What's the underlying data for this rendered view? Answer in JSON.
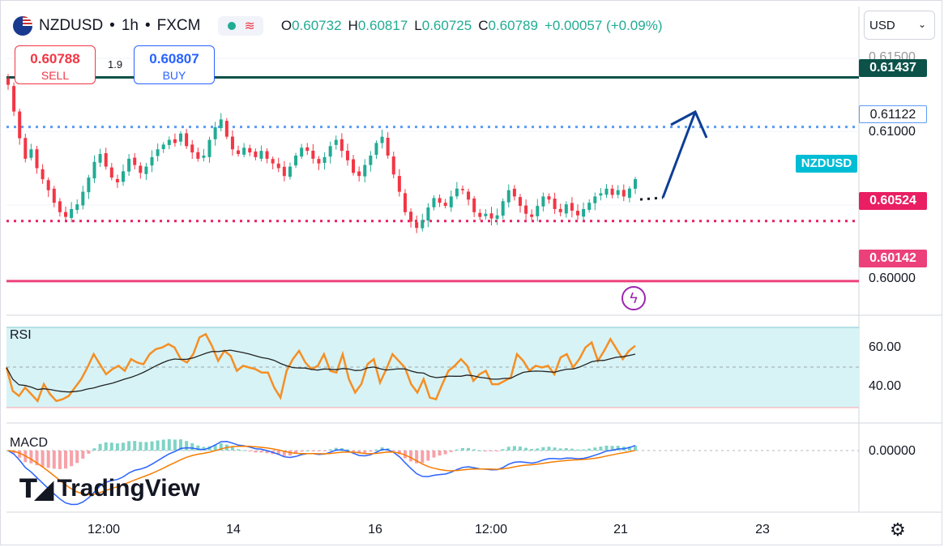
{
  "header": {
    "symbol": "NZDUSD",
    "separator1": "•",
    "interval": "1h",
    "separator2": "•",
    "exchange": "FXCM",
    "open_label": "O",
    "open": "0.60732",
    "high_label": "H",
    "high": "0.60817",
    "low_label": "L",
    "low": "0.60725",
    "close_label": "C",
    "close": "0.60789",
    "change": "+0.00057 (+0.09%)"
  },
  "trade": {
    "sell_price": "0.60788",
    "sell_label": "SELL",
    "buy_price": "0.60807",
    "buy_label": "BUY",
    "spread": "1.9"
  },
  "currency_selector": {
    "value": "USD"
  },
  "price_labels": {
    "resistance_top": "0.61437",
    "resistance_mid": "0.61122",
    "support_mid": "0.60524",
    "support_low": "0.60142",
    "symbol_tag": "NZDUSD"
  },
  "price_axis_ticks": [
    "0.61500",
    "0.61000",
    "0.60000"
  ],
  "rsi": {
    "label": "RSI",
    "ticks": [
      "60.00",
      "40.00"
    ]
  },
  "macd": {
    "label": "MACD",
    "ticks": [
      "0.00000"
    ]
  },
  "x_axis_ticks": [
    "12:00",
    "14",
    "16",
    "12:00",
    "21",
    "23"
  ],
  "branding": {
    "logo_text": "TradingView"
  },
  "colors": {
    "up": "#22ab94",
    "down": "#f23645",
    "resistance_line": "#0c5249",
    "dotted_resistance": "#5b9cf6",
    "dotted_support": "#e91e63",
    "support_line": "#ec407a",
    "rsi_line": "#f58f24",
    "rsi_ma": "#222222",
    "rsi_band": "#d7f3f6",
    "macd_line": "#2962ff",
    "signal_line": "#f57c00",
    "arrow": "#0d3e96"
  },
  "chart_data": {
    "type": "candlestick",
    "symbol": "NZDUSD",
    "interval": "1h",
    "ylim": [
      0.5993,
      0.6162
    ],
    "horizontal_levels": [
      0.61437,
      0.61122,
      0.60524,
      0.60142
    ],
    "closes": [
      0.6139,
      0.6122,
      0.6105,
      0.6092,
      0.6098,
      0.6086,
      0.6079,
      0.6072,
      0.6064,
      0.6058,
      0.6055,
      0.606,
      0.6063,
      0.6071,
      0.608,
      0.609,
      0.6095,
      0.6087,
      0.608,
      0.6077,
      0.6084,
      0.6092,
      0.6088,
      0.6083,
      0.6087,
      0.6093,
      0.6098,
      0.6101,
      0.6104,
      0.6102,
      0.6108,
      0.61,
      0.6096,
      0.6092,
      0.6094,
      0.6104,
      0.6112,
      0.6117,
      0.6106,
      0.6098,
      0.6095,
      0.6099,
      0.6096,
      0.6093,
      0.6097,
      0.6092,
      0.6089,
      0.6086,
      0.6081,
      0.6087,
      0.6094,
      0.6099,
      0.6097,
      0.6092,
      0.6089,
      0.6093,
      0.61,
      0.6104,
      0.6097,
      0.6091,
      0.6083,
      0.6081,
      0.6088,
      0.6094,
      0.6102,
      0.6106,
      0.6094,
      0.6082,
      0.6071,
      0.6058,
      0.6052,
      0.6048,
      0.6053,
      0.6061,
      0.6067,
      0.6064,
      0.6062,
      0.6068,
      0.6073,
      0.6072,
      0.6066,
      0.6058,
      0.6055,
      0.6057,
      0.6054,
      0.6056,
      0.6065,
      0.6072,
      0.6068,
      0.6062,
      0.6057,
      0.6055,
      0.6062,
      0.6068,
      0.6066,
      0.606,
      0.6058,
      0.6063,
      0.6059,
      0.6056,
      0.606,
      0.6064,
      0.6068,
      0.607,
      0.6073,
      0.6069,
      0.6072,
      0.6068,
      0.6073,
      0.6079
    ],
    "rsi": {
      "values": [
        50,
        36,
        33,
        38,
        34,
        30,
        40,
        34,
        30,
        31,
        33,
        38,
        43,
        50,
        58,
        52,
        46,
        49,
        51,
        48,
        55,
        53,
        52,
        58,
        61,
        62,
        64,
        62,
        55,
        53,
        58,
        68,
        70,
        63,
        54,
        60,
        57,
        48,
        51,
        50,
        49,
        47,
        47,
        38,
        32,
        48,
        55,
        60,
        53,
        49,
        51,
        58,
        48,
        47,
        58,
        43,
        35,
        40,
        52,
        55,
        41,
        49,
        58,
        54,
        50,
        40,
        35,
        43,
        32,
        31,
        40,
        48,
        51,
        55,
        51,
        42,
        46,
        48,
        40,
        40,
        42,
        44,
        58,
        54,
        48,
        51,
        50,
        51,
        46,
        56,
        58,
        50,
        55,
        62,
        65,
        54,
        60,
        67,
        61,
        55,
        60,
        63
      ]
    },
    "macd": {
      "note_level": 0.0
    }
  }
}
